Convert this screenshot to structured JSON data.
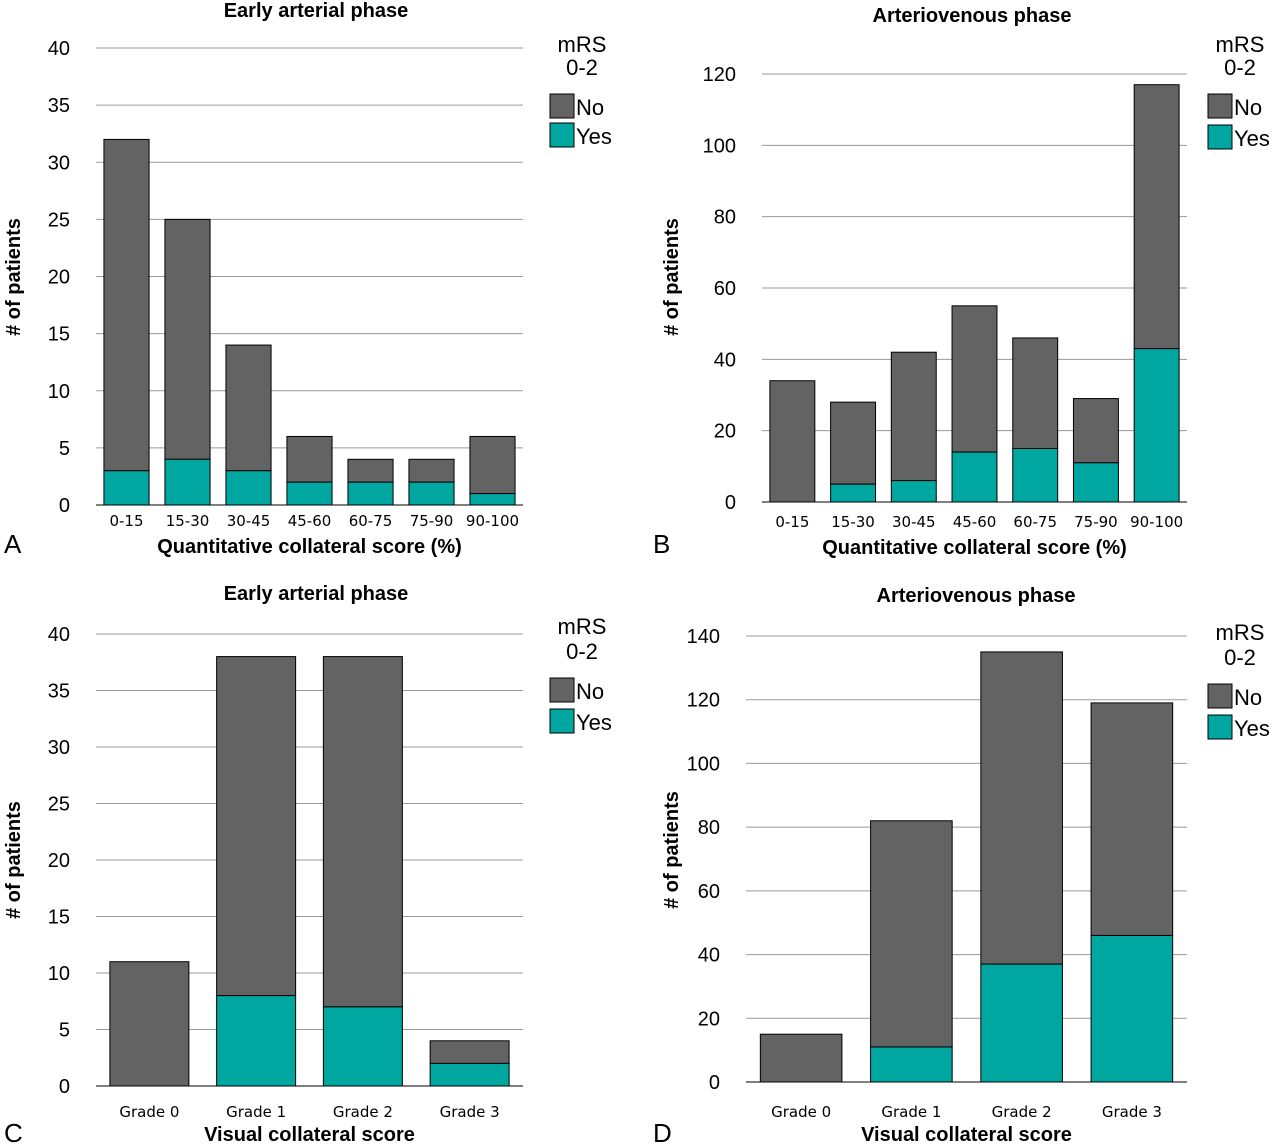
{
  "colors": {
    "no": "#636363",
    "yes": "#00a6a0"
  },
  "chart_data": [
    {
      "type": "bar",
      "stacked": true,
      "panel_letter": "A",
      "title": "Early arterial phase",
      "xlabel": "Quantitative collateral score (%)",
      "ylabel": "# of patients",
      "ylim": [
        0,
        40
      ],
      "yticks": [
        0,
        5,
        10,
        15,
        20,
        25,
        30,
        35,
        40
      ],
      "grid": true,
      "legend": {
        "title_lines": [
          "mRS",
          "0-2"
        ],
        "placement": "top-right"
      },
      "categories": [
        "0-15",
        "15-30",
        "30-45",
        "45-60",
        "60-75",
        "75-90",
        "90-100"
      ],
      "series": [
        {
          "name": "No",
          "values": [
            29,
            21,
            11,
            4,
            2,
            2,
            5
          ]
        },
        {
          "name": "Yes",
          "values": [
            3,
            4,
            3,
            2,
            2,
            2,
            1
          ]
        }
      ]
    },
    {
      "type": "bar",
      "stacked": true,
      "panel_letter": "B",
      "title": "Arteriovenous phase",
      "xlabel": "Quantitative collateral score (%)",
      "ylabel": "# of patients",
      "ylim": [
        0,
        120
      ],
      "yticks": [
        0,
        20,
        40,
        60,
        80,
        100,
        120
      ],
      "grid": true,
      "legend": {
        "title_lines": [
          "mRS",
          "0-2"
        ],
        "placement": "top-right"
      },
      "categories": [
        "0-15",
        "15-30",
        "30-45",
        "45-60",
        "60-75",
        "75-90",
        "90-100"
      ],
      "series": [
        {
          "name": "No",
          "values": [
            34,
            23,
            36,
            41,
            31,
            18,
            74
          ]
        },
        {
          "name": "Yes",
          "values": [
            0,
            5,
            6,
            14,
            15,
            11,
            43
          ]
        }
      ]
    },
    {
      "type": "bar",
      "stacked": true,
      "panel_letter": "C",
      "title": "Early arterial phase",
      "xlabel": "Visual collateral score",
      "ylabel": "# of patients",
      "ylim": [
        0,
        40
      ],
      "yticks": [
        0,
        5,
        10,
        15,
        20,
        25,
        30,
        35,
        40
      ],
      "grid": true,
      "legend": {
        "title_lines": [
          "mRS",
          "0-2"
        ],
        "placement": "top-right"
      },
      "categories": [
        "Grade 0",
        "Grade 1",
        "Grade 2",
        "Grade 3"
      ],
      "series": [
        {
          "name": "No",
          "values": [
            11,
            30,
            31,
            2
          ]
        },
        {
          "name": "Yes",
          "values": [
            0,
            8,
            7,
            2
          ]
        }
      ]
    },
    {
      "type": "bar",
      "stacked": true,
      "panel_letter": "D",
      "title": "Arteriovenous phase",
      "xlabel": "Visual collateral score",
      "ylabel": "# of patients",
      "ylim": [
        0,
        140
      ],
      "yticks": [
        0,
        20,
        40,
        60,
        80,
        100,
        120,
        140
      ],
      "grid": true,
      "legend": {
        "title_lines": [
          "mRS",
          "0-2"
        ],
        "placement": "top-right"
      },
      "categories": [
        "Grade 0",
        "Grade 1",
        "Grade 2",
        "Grade 3"
      ],
      "series": [
        {
          "name": "No",
          "values": [
            15,
            71,
            98,
            73
          ]
        },
        {
          "name": "Yes",
          "values": [
            0,
            11,
            37,
            46
          ]
        }
      ]
    }
  ]
}
